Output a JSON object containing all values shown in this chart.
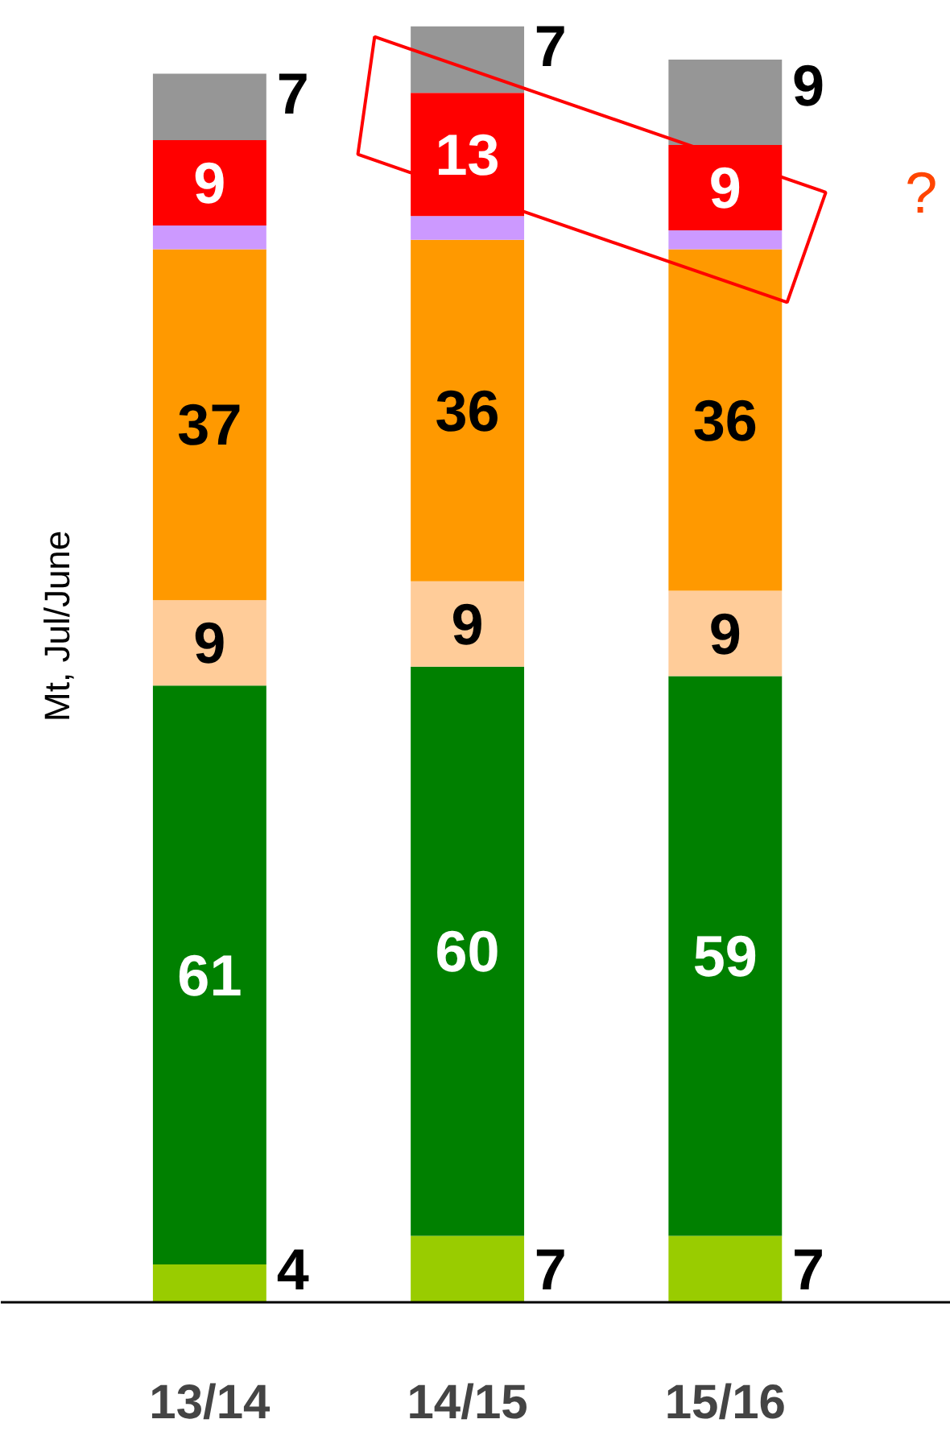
{
  "chart_data": {
    "type": "bar",
    "stacked": true,
    "ylabel": "Mt, Jul/June",
    "categories": [
      "13/14",
      "14/15",
      "15/16"
    ],
    "series": [
      {
        "color": "#99cc00",
        "values": [
          4,
          7,
          7
        ],
        "value_labels": [
          "4",
          "7",
          "7"
        ]
      },
      {
        "color": "#008000",
        "values": [
          61,
          60,
          59
        ],
        "value_labels": [
          "61",
          "60",
          "59"
        ]
      },
      {
        "color": "#ffcc99",
        "values": [
          9,
          9,
          9
        ],
        "value_labels": [
          "9",
          "9",
          "9"
        ]
      },
      {
        "color": "#ff9900",
        "values": [
          37,
          36,
          36
        ],
        "value_labels": [
          "37",
          "36",
          "36"
        ]
      },
      {
        "color": "#cc99ff",
        "values": [
          2.5,
          2.5,
          2
        ],
        "value_labels": [
          null,
          null,
          null
        ]
      },
      {
        "color": "#ff0000",
        "values": [
          9,
          13,
          9
        ],
        "value_labels": [
          "9",
          "13",
          "9"
        ]
      },
      {
        "color": "#969696",
        "values": [
          7,
          7,
          9
        ],
        "value_labels": [
          "7",
          "7",
          "9"
        ]
      }
    ],
    "annotations": [
      "?"
    ],
    "grid": false
  }
}
